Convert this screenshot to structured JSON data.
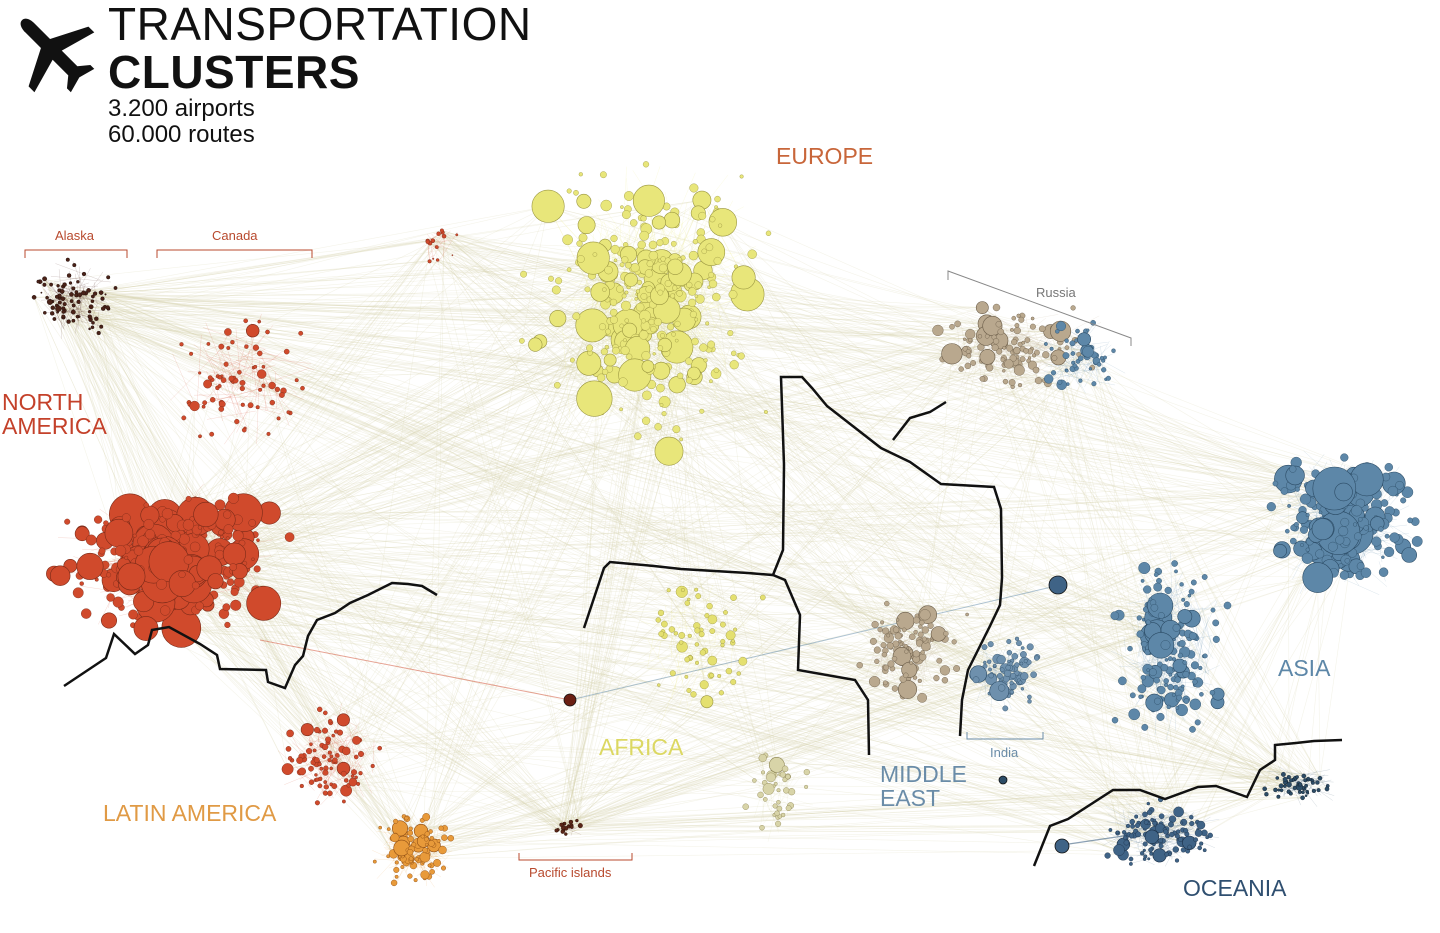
{
  "header": {
    "title_line1": "TRANSPORTATION",
    "title_line2": "CLUSTERS",
    "stat_airports": "3.200 airports",
    "stat_routes": "60.000 routes",
    "icon": "airplane-icon"
  },
  "regions": {
    "europe": "EUROPE",
    "north_america_1": "NORTH",
    "north_america_2": "AMERICA",
    "latin_america": "LATIN AMERICA",
    "africa": "AFRICA",
    "middle_east_1": "MIDDLE",
    "middle_east_2": "EAST",
    "asia": "ASIA",
    "oceania": "OCEANIA"
  },
  "subregions": {
    "alaska": "Alaska",
    "canada": "Canada",
    "russia": "Russia",
    "india": "India",
    "pacific_islands": "Pacific islands"
  },
  "colors": {
    "north_america": "#d04a2c",
    "latin_america": "#e89a3a",
    "europe": "#e8e67a",
    "africa": "#e4e070",
    "middle_east": "#b9a88e",
    "asia": "#5d87a8",
    "oceania": "#3f6386",
    "borders": "#111111",
    "edges": "#d8d3b0"
  }
}
